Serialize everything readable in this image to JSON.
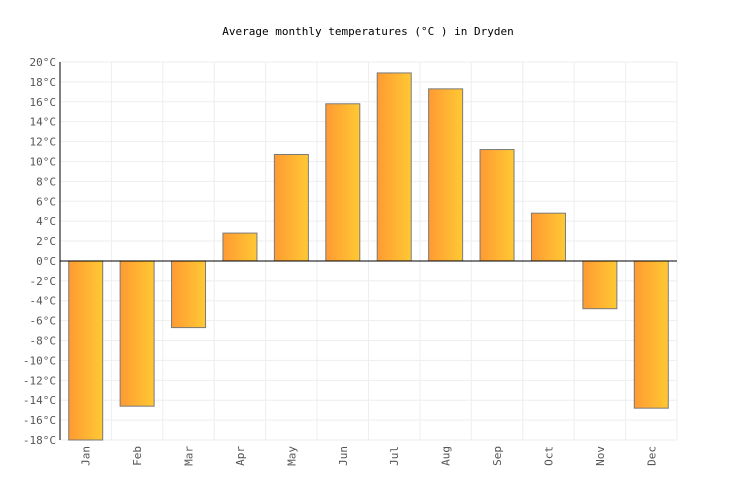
{
  "chart_data": {
    "type": "bar",
    "title": "Average monthly temperatures (°C ) in Dryden",
    "categories": [
      "Jan",
      "Feb",
      "Mar",
      "Apr",
      "May",
      "Jun",
      "Jul",
      "Aug",
      "Sep",
      "Oct",
      "Nov",
      "Dec"
    ],
    "values": [
      -18.0,
      -14.6,
      -6.7,
      2.8,
      10.7,
      15.8,
      18.9,
      17.3,
      11.2,
      4.8,
      -4.8,
      -14.8
    ],
    "ylim": [
      -18,
      20
    ],
    "ytick_step": 2,
    "ytick_suffix": "°C",
    "grid": true,
    "colors": {
      "bar_left": "#ff9a33",
      "bar_right": "#ffc933",
      "bar_border": "#7a7a7a",
      "grid": "#eeeeee"
    }
  }
}
